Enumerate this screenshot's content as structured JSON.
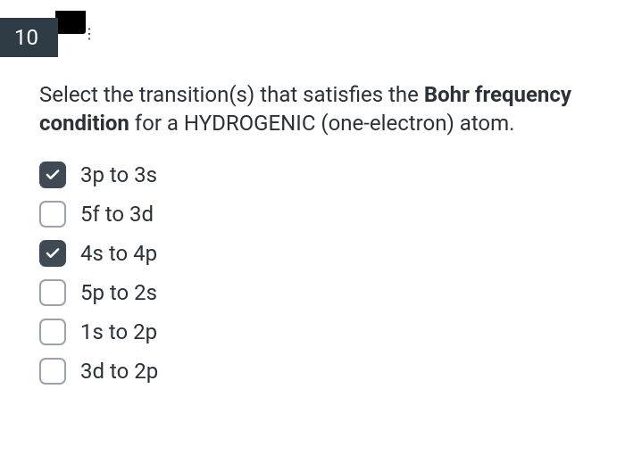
{
  "question_number": "10",
  "question_html": "Select the transition(s) that satisfies the <b>Bohr frequency condition</b> for a HYDROGENIC (one-electron) atom.",
  "options": [
    {
      "label": "3p to 3s",
      "checked": true
    },
    {
      "label": "5f to 3d",
      "checked": false
    },
    {
      "label": "4s to 4p",
      "checked": true
    },
    {
      "label": "5p to 2s",
      "checked": false
    },
    {
      "label": "1s to 2p",
      "checked": false
    },
    {
      "label": "3d to 2p",
      "checked": false
    }
  ],
  "colors": {
    "badge_bg": "#2f3b45",
    "badge_text": "#ffffff",
    "checkbox_checked_bg": "#3f4a55",
    "checkbox_border": "#9aa2ab",
    "text": "#2b3138",
    "background": "#ffffff"
  }
}
